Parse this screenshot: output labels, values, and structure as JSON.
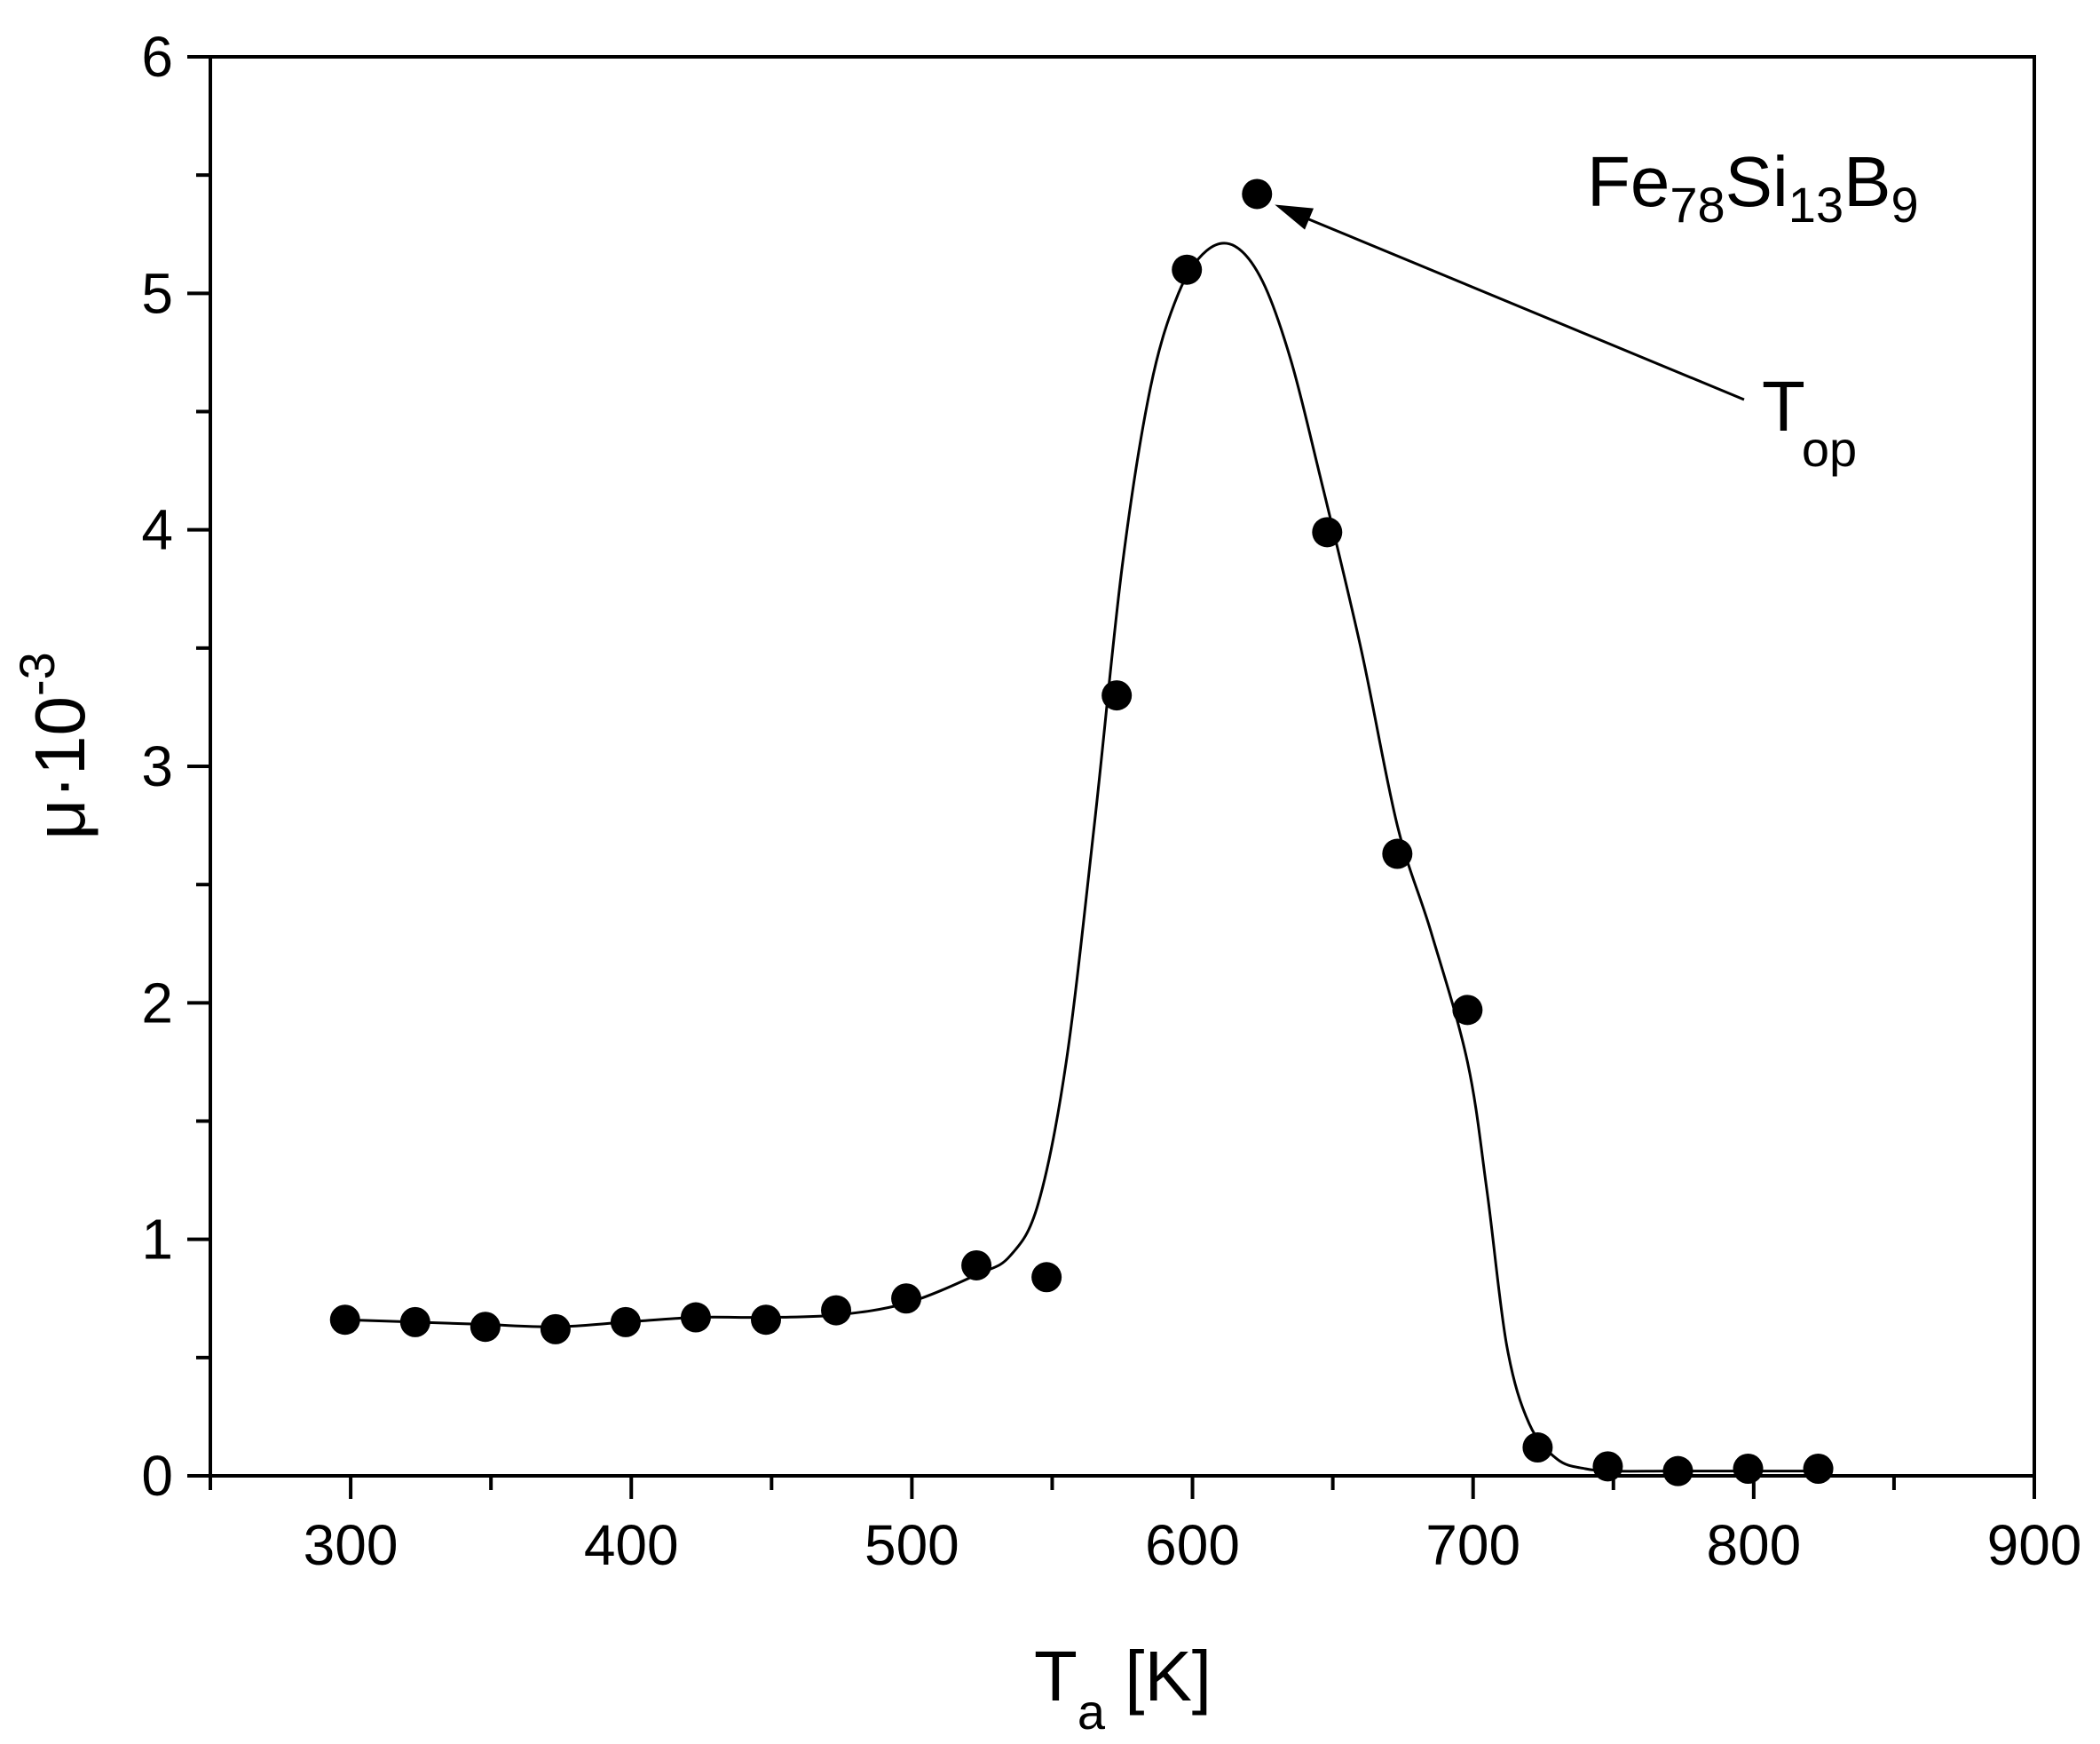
{
  "chart_data": {
    "type": "scatter",
    "xlim": [
      250,
      900
    ],
    "ylim": [
      0,
      6
    ],
    "x_ticks": [
      300,
      400,
      500,
      600,
      700,
      800,
      900
    ],
    "y_ticks": [
      0,
      1,
      2,
      3,
      4,
      5,
      6
    ],
    "x_minor_step": 50,
    "y_minor_step": 0.5,
    "xlabel": {
      "main": "T",
      "sub": "a",
      "suffix": " [K]"
    },
    "ylabel": {
      "main": "μ·10",
      "sup": "-3"
    },
    "annotation_material": {
      "parts": [
        {
          "text": "Fe",
          "sub": false
        },
        {
          "text": "78",
          "sub": true
        },
        {
          "text": "Si",
          "sub": false
        },
        {
          "text": "13",
          "sub": true
        },
        {
          "text": "B",
          "sub": false
        },
        {
          "text": "9",
          "sub": true
        }
      ]
    },
    "annotation_arrow": {
      "label_main": "T",
      "label_sub": "op",
      "points_to": [
        623,
        5.42
      ],
      "from": [
        695,
        4.5
      ]
    },
    "series": [
      {
        "style": "markers",
        "x": [
          298,
          323,
          348,
          373,
          398,
          423,
          448,
          473,
          498,
          523,
          548,
          573,
          598,
          623,
          648,
          673,
          698,
          723,
          748,
          773,
          798,
          823
        ],
        "y": [
          0.66,
          0.65,
          0.63,
          0.62,
          0.65,
          0.67,
          0.66,
          0.7,
          0.75,
          0.89,
          0.84,
          3.3,
          5.1,
          5.42,
          3.99,
          2.63,
          1.97,
          0.12,
          0.04,
          0.02,
          0.03,
          0.03
        ]
      },
      {
        "style": "line",
        "x": [
          298,
          323,
          348,
          373,
          398,
          423,
          448,
          473,
          498,
          523,
          535,
          545,
          555,
          565,
          575,
          585,
          595,
          605,
          615,
          625,
          635,
          645,
          660,
          673,
          685,
          698,
          705,
          712,
          720,
          730,
          740,
          750,
          770,
          800,
          823
        ],
        "y": [
          0.66,
          0.65,
          0.64,
          0.63,
          0.65,
          0.67,
          0.67,
          0.68,
          0.73,
          0.85,
          0.93,
          1.15,
          1.75,
          2.75,
          3.85,
          4.6,
          5.0,
          5.18,
          5.2,
          5.05,
          4.72,
          4.25,
          3.5,
          2.75,
          2.3,
          1.75,
          1.2,
          0.55,
          0.22,
          0.07,
          0.03,
          0.02,
          0.02,
          0.02,
          0.02
        ]
      }
    ]
  }
}
